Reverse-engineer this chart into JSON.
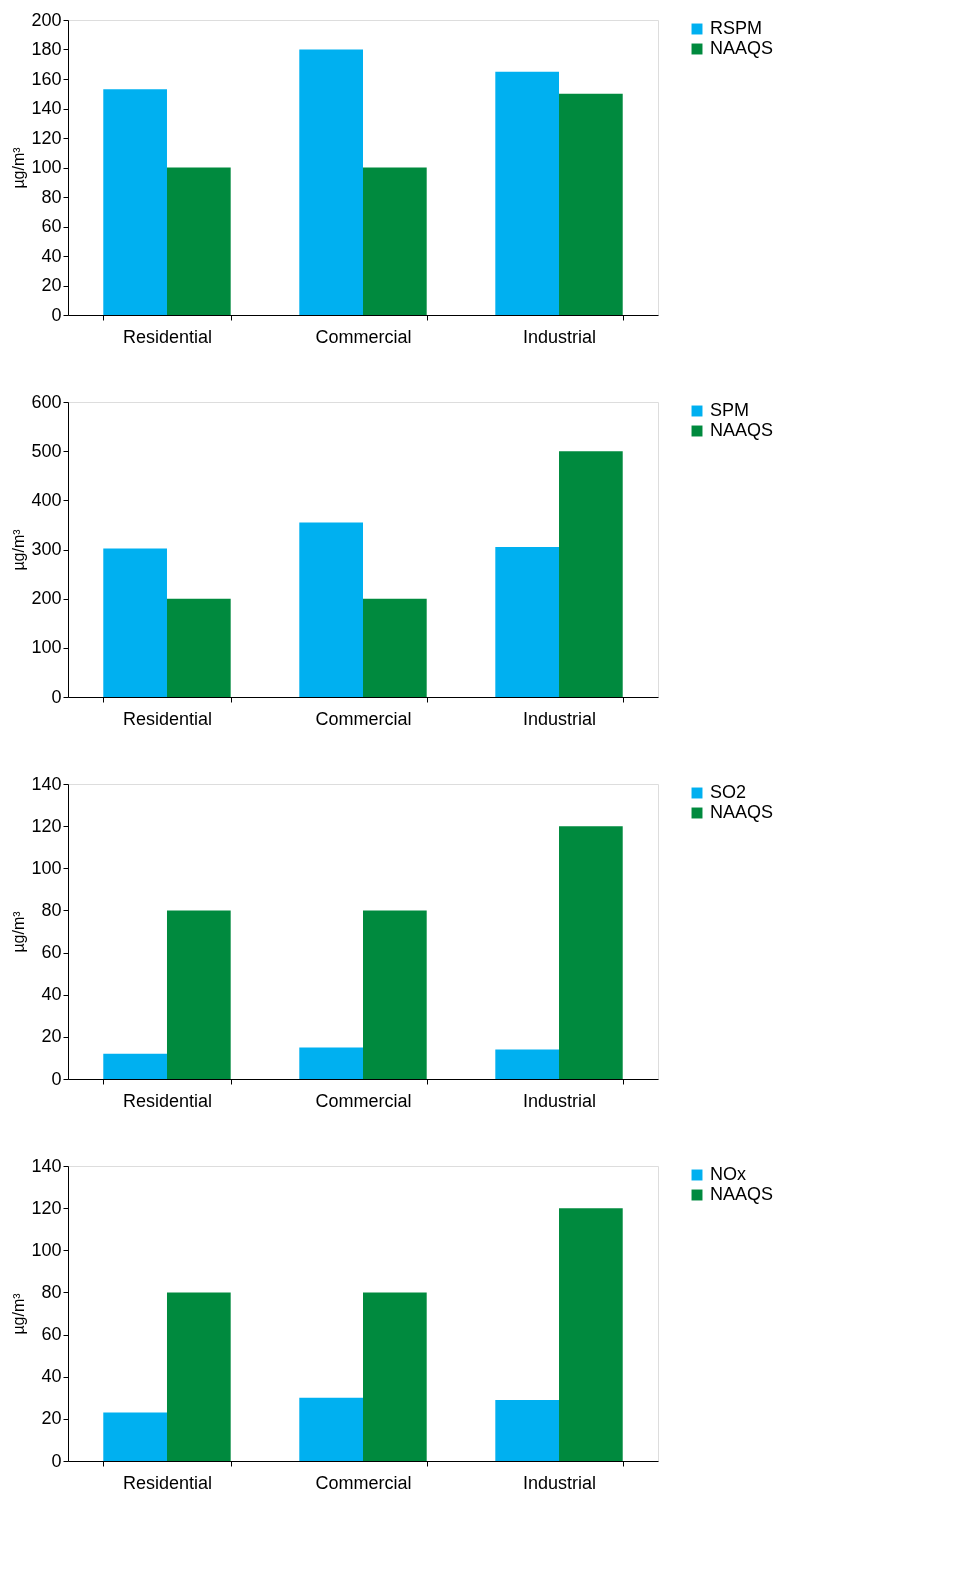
{
  "chart_data": [
    {
      "type": "bar",
      "ylabel": "µg/m³",
      "categories": [
        "Residential",
        "Commercial",
        "Industrial"
      ],
      "ylim": [
        0,
        200
      ],
      "yticks": [
        0,
        20,
        40,
        60,
        80,
        100,
        120,
        140,
        160,
        180,
        200
      ],
      "grid": false,
      "legend": "right",
      "series": [
        {
          "name": "RSPM",
          "color": "#00b0f0",
          "values": [
            153,
            180,
            165
          ]
        },
        {
          "name": "NAAQS",
          "color": "#008a3e",
          "values": [
            100,
            100,
            150
          ]
        }
      ]
    },
    {
      "type": "bar",
      "ylabel": "µg/m³",
      "categories": [
        "Residential",
        "Commercial",
        "Industrial"
      ],
      "ylim": [
        0,
        600
      ],
      "yticks": [
        0,
        100,
        200,
        300,
        400,
        500,
        600
      ],
      "grid": false,
      "legend": "right",
      "series": [
        {
          "name": "SPM",
          "color": "#00b0f0",
          "values": [
            302,
            355,
            305
          ]
        },
        {
          "name": "NAAQS",
          "color": "#008a3e",
          "values": [
            200,
            200,
            500
          ]
        }
      ]
    },
    {
      "type": "bar",
      "ylabel": "µg/m³",
      "categories": [
        "Residential",
        "Commercial",
        "Industrial"
      ],
      "ylim": [
        0,
        140
      ],
      "yticks": [
        0,
        20,
        40,
        60,
        80,
        100,
        120,
        140
      ],
      "grid": false,
      "legend": "right",
      "series": [
        {
          "name": "SO2",
          "color": "#00b0f0",
          "values": [
            12,
            15,
            14
          ]
        },
        {
          "name": "NAAQS",
          "color": "#008a3e",
          "values": [
            80,
            80,
            120
          ]
        }
      ]
    },
    {
      "type": "bar",
      "ylabel": "µg/m³",
      "categories": [
        "Residential",
        "Commercial",
        "Industrial"
      ],
      "ylim": [
        0,
        140
      ],
      "yticks": [
        0,
        20,
        40,
        60,
        80,
        100,
        120,
        140
      ],
      "grid": false,
      "legend": "right",
      "series": [
        {
          "name": "NOx",
          "color": "#00b0f0",
          "values": [
            23,
            30,
            29
          ]
        },
        {
          "name": "NAAQS",
          "color": "#008a3e",
          "values": [
            80,
            80,
            120
          ]
        }
      ]
    }
  ]
}
